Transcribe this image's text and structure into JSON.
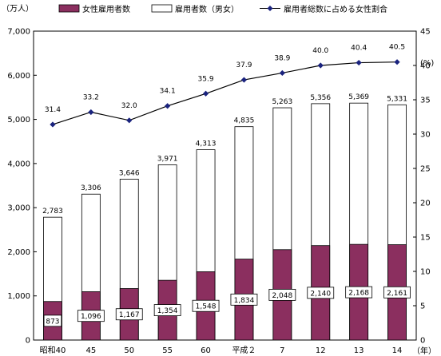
{
  "chart_data": {
    "type": "bar",
    "categories": [
      "昭和40",
      "45",
      "50",
      "55",
      "60",
      "平成２",
      "7",
      "12",
      "13",
      "14"
    ],
    "series": [
      {
        "name": "女性雇用者数",
        "type": "bar",
        "axis": "left",
        "values": [
          873,
          1096,
          1167,
          1354,
          1548,
          1834,
          2048,
          2140,
          2168,
          2161
        ],
        "color": "#8b2f5f"
      },
      {
        "name": "雇用者数（男女）",
        "type": "bar",
        "axis": "left",
        "values": [
          2783,
          3306,
          3646,
          3971,
          4313,
          4835,
          5263,
          5356,
          5369,
          5331
        ],
        "color": "#ffffff"
      },
      {
        "name": "雇用者総数に占める女性割合",
        "type": "line",
        "axis": "right",
        "values": [
          31.4,
          33.2,
          32.0,
          34.1,
          35.9,
          37.9,
          38.9,
          40.0,
          40.4,
          40.5
        ],
        "color": "#1a237e"
      }
    ],
    "female_labels": [
      "873",
      "1,096",
      "1,167",
      "1,354",
      "1,548",
      "1,834",
      "2,048",
      "2,140",
      "2,168",
      "2,161"
    ],
    "total_labels": [
      "2,783",
      "3,306",
      "3,646",
      "3,971",
      "4,313",
      "4,835",
      "5,263",
      "5,356",
      "5,369",
      "5,331"
    ],
    "ratio_labels": [
      "31.4",
      "33.2",
      "32.0",
      "34.1",
      "35.9",
      "37.9",
      "38.9",
      "40.0",
      "40.4",
      "40.5"
    ],
    "ylabel_left": "（万人）",
    "ylabel_right": "(%)",
    "xlabel": "（年）",
    "ylim_left": [
      0,
      7000
    ],
    "yticks_left": [
      "0",
      "1,000",
      "2,000",
      "3,000",
      "4,000",
      "5,000",
      "6,000",
      "7,000"
    ],
    "ylim_right": [
      0,
      45
    ],
    "yticks_right": [
      "0",
      "5",
      "10",
      "15",
      "20",
      "25",
      "30",
      "35",
      "40",
      "45"
    ],
    "grid": false,
    "legend_position": "top"
  }
}
